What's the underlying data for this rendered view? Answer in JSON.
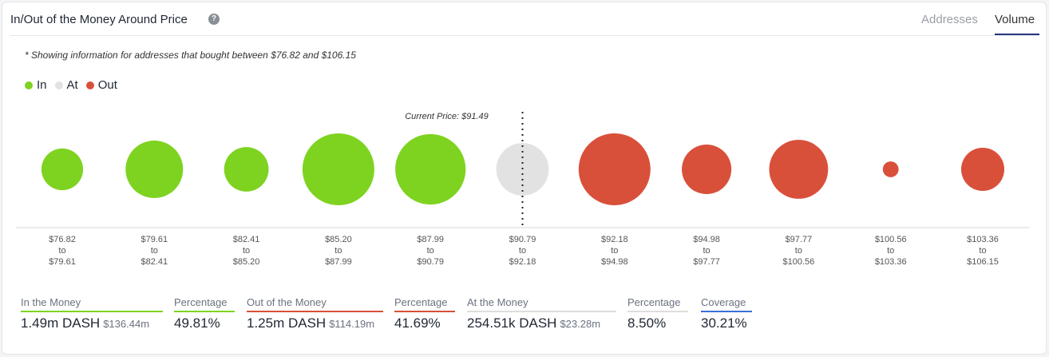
{
  "header": {
    "title": "In/Out of the Money Around Price",
    "help_icon": "question-circle-icon",
    "tabs": [
      {
        "label": "Addresses",
        "active": false
      },
      {
        "label": "Volume",
        "active": true
      }
    ]
  },
  "note": "* Showing information for addresses that bought between $76.82 and $106.15",
  "legend": [
    {
      "label": "In",
      "color": "#7ed321"
    },
    {
      "label": "At",
      "color": "#e2e2e2"
    },
    {
      "label": "Out",
      "color": "#d9503a"
    }
  ],
  "chart_data": {
    "type": "bubble",
    "current_price_label": "Current Price: $91.49",
    "current_price_bucket_index": 5,
    "buckets": [
      {
        "from": "$76.82",
        "to": "$79.61",
        "status": "in",
        "relative_size": 0.58
      },
      {
        "from": "$79.61",
        "to": "$82.41",
        "status": "in",
        "relative_size": 0.8
      },
      {
        "from": "$82.41",
        "to": "$85.20",
        "status": "in",
        "relative_size": 0.62
      },
      {
        "from": "$85.20",
        "to": "$87.99",
        "status": "in",
        "relative_size": 1.0
      },
      {
        "from": "$87.99",
        "to": "$90.79",
        "status": "in",
        "relative_size": 0.98
      },
      {
        "from": "$90.79",
        "to": "$92.18",
        "status": "at",
        "relative_size": 0.73
      },
      {
        "from": "$92.18",
        "to": "$94.98",
        "status": "out",
        "relative_size": 1.0
      },
      {
        "from": "$94.98",
        "to": "$97.77",
        "status": "out",
        "relative_size": 0.69
      },
      {
        "from": "$97.77",
        "to": "$100.56",
        "status": "out",
        "relative_size": 0.82
      },
      {
        "from": "$100.56",
        "to": "$103.36",
        "status": "out",
        "relative_size": 0.22
      },
      {
        "from": "$103.36",
        "to": "$106.15",
        "status": "out",
        "relative_size": 0.6
      }
    ],
    "to_word": "to"
  },
  "colors": {
    "in": "#7ed321",
    "at": "#e2e2e2",
    "out": "#d9503a",
    "coverage": "#3b6fd8"
  },
  "stats": [
    {
      "label": "In the Money",
      "value": "1.49m DASH",
      "sub": "$136.44m",
      "color": "#7ed321"
    },
    {
      "label": "Percentage",
      "value": "49.81%",
      "color": "#7ed321"
    },
    {
      "label": "Out of the Money",
      "value": "1.25m DASH",
      "sub": "$114.19m",
      "color": "#d9503a"
    },
    {
      "label": "Percentage",
      "value": "41.69%",
      "color": "#d9503a"
    },
    {
      "label": "At the Money",
      "value": "254.51k DASH",
      "sub": "$23.28m",
      "color": "#dddddd"
    },
    {
      "label": "Percentage",
      "value": "8.50%",
      "color": "#dddddd"
    },
    {
      "label": "Coverage",
      "value": "30.21%",
      "color": "#3b6fd8"
    }
  ]
}
